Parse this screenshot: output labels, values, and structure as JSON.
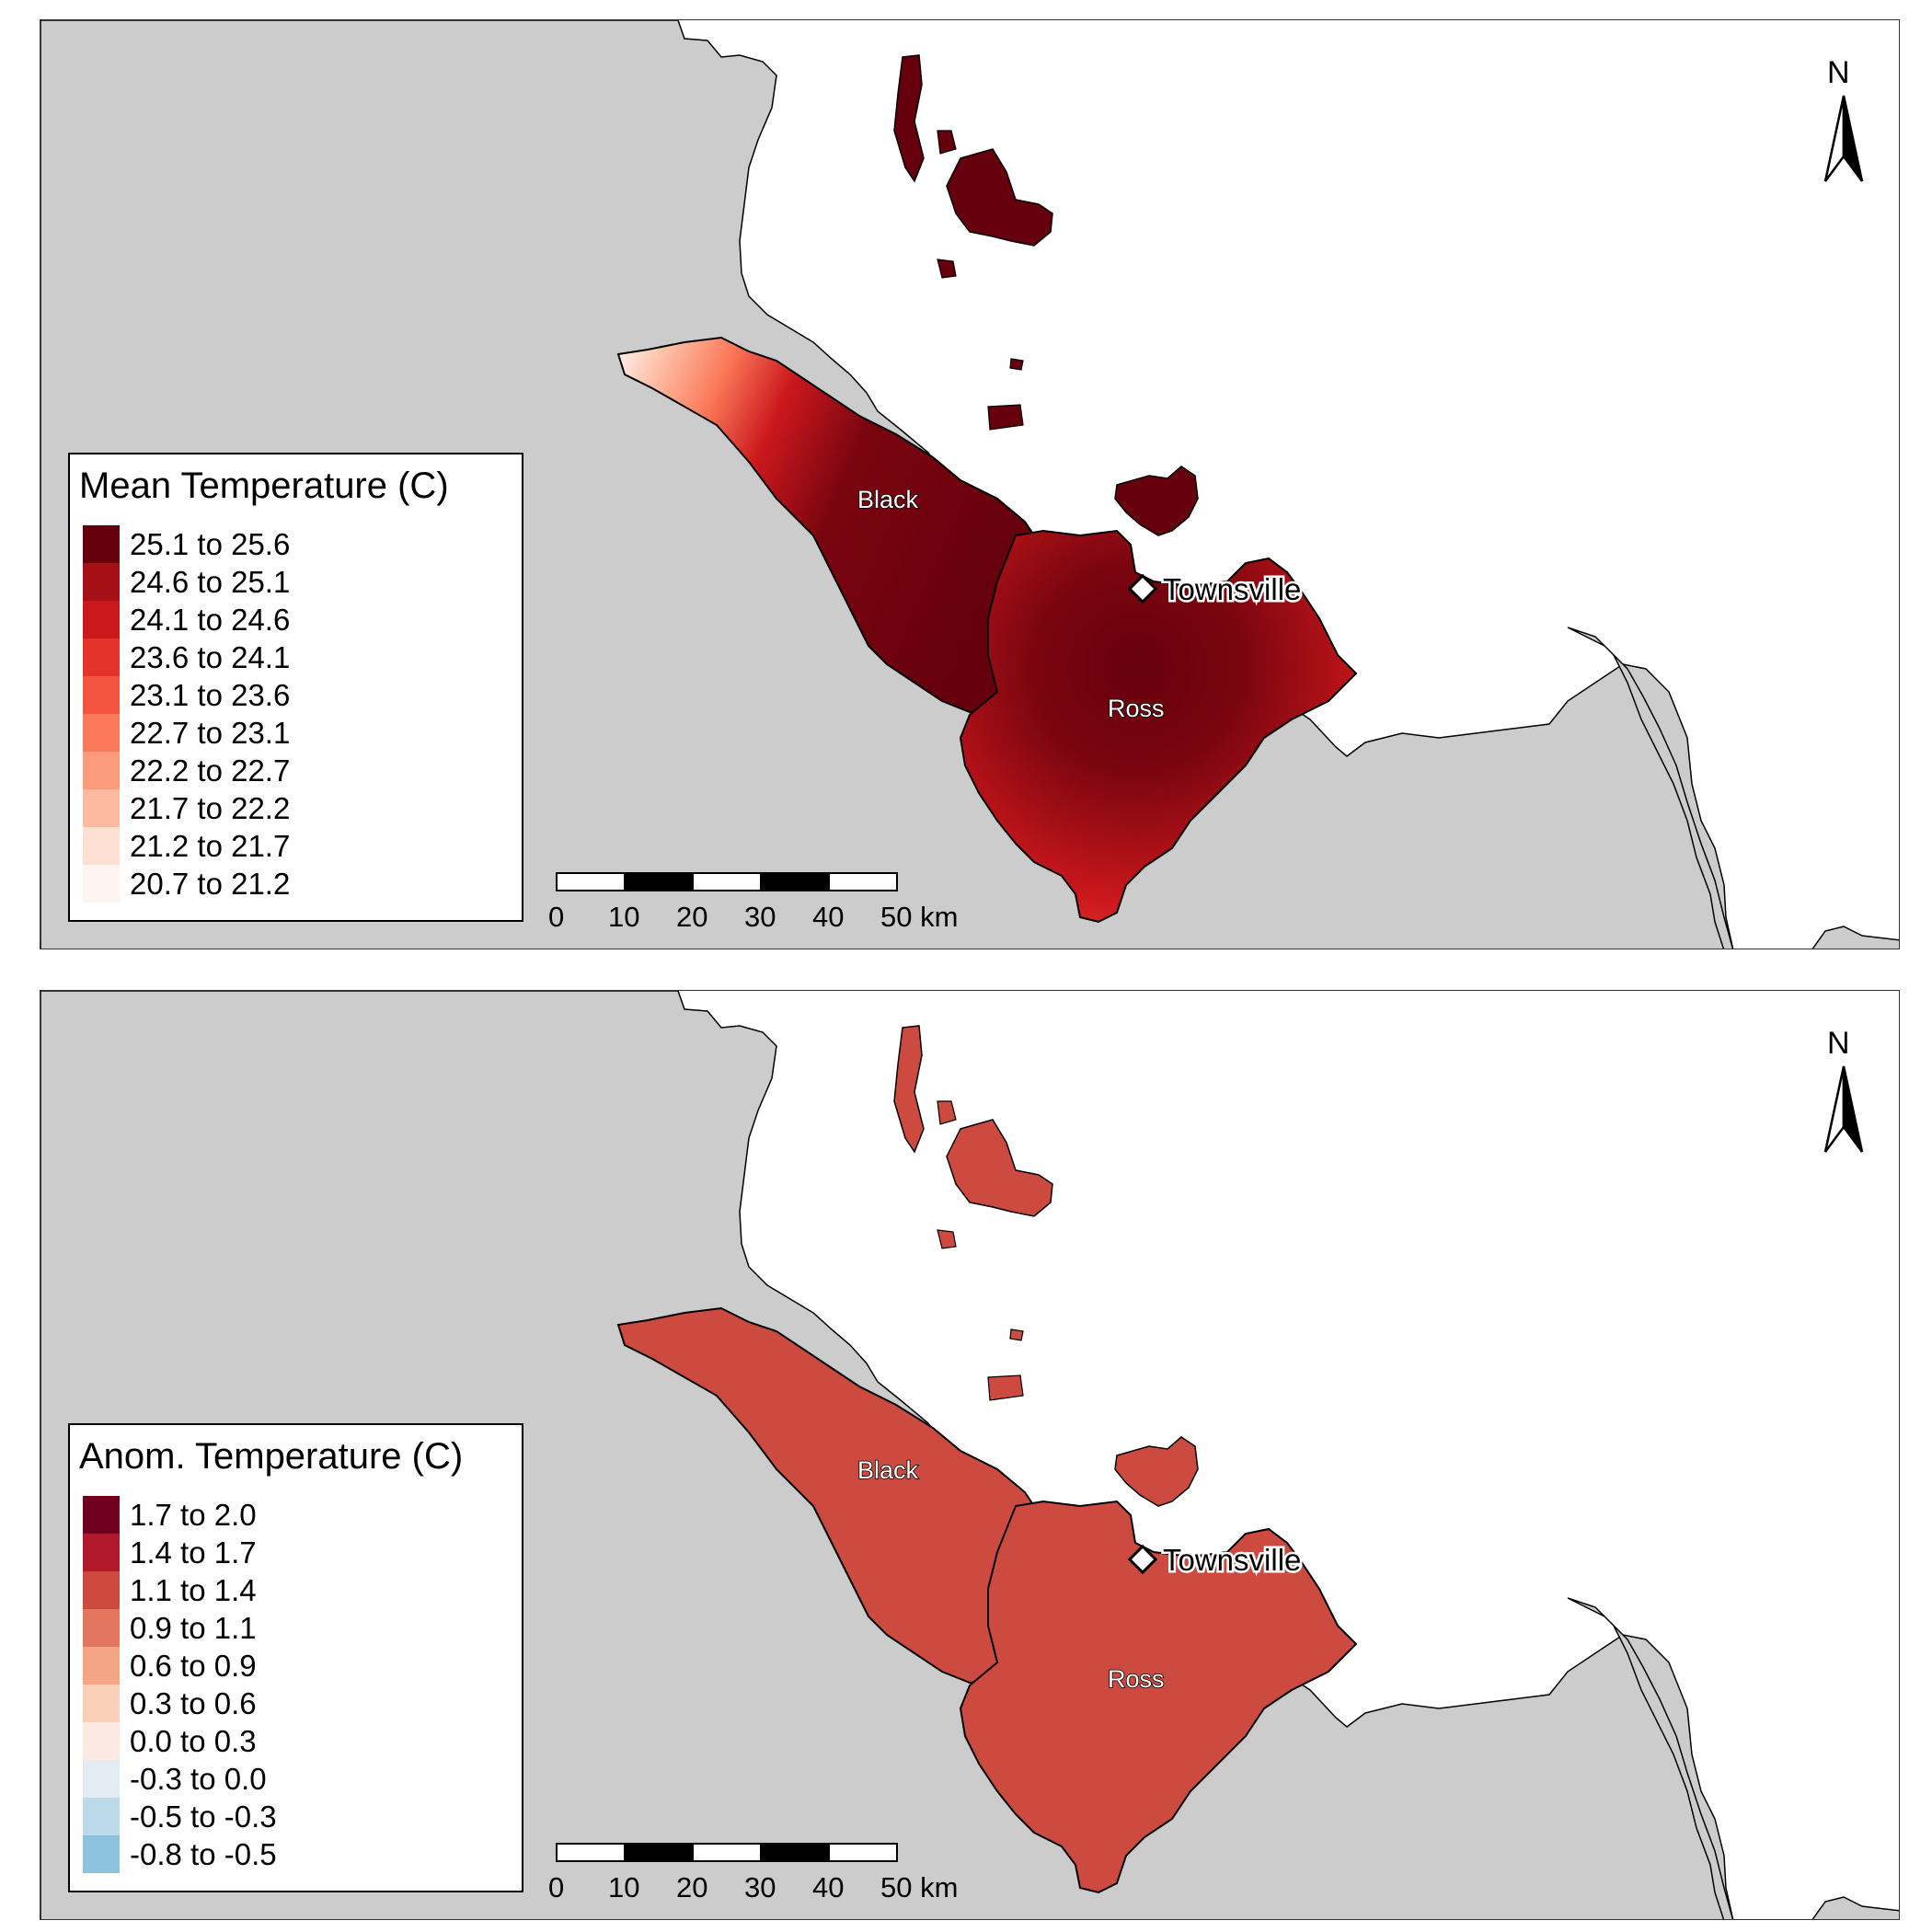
{
  "panels": [
    {
      "legend": {
        "title": "Mean Temperature (C)",
        "items": [
          {
            "label": "25.1 to 25.6",
            "color": "#67000d"
          },
          {
            "label": "24.6 to 25.1",
            "color": "#a50f15"
          },
          {
            "label": "24.1 to 24.6",
            "color": "#cb181d"
          },
          {
            "label": "23.6 to 24.1",
            "color": "#e5322b"
          },
          {
            "label": "23.1 to 23.6",
            "color": "#f4543f"
          },
          {
            "label": "22.7 to 23.1",
            "color": "#fb7858"
          },
          {
            "label": "22.2 to 22.7",
            "color": "#fc9a7c"
          },
          {
            "label": "21.7 to 22.2",
            "color": "#fcbba1"
          },
          {
            "label": "21.2 to 21.7",
            "color": "#fee0d2"
          },
          {
            "label": "20.7 to 21.2",
            "color": "#fff5f0"
          }
        ]
      },
      "labels": {
        "black": "Black",
        "ross": "Ross",
        "city": "Townsville"
      },
      "north": "N",
      "scale": {
        "ticks": [
          "0",
          "10",
          "20",
          "30",
          "40",
          "50 km"
        ]
      }
    },
    {
      "legend": {
        "title": "Anom. Temperature (C)",
        "items": [
          {
            "label": "1.7 to 2.0",
            "color": "#6f0020"
          },
          {
            "label": "1.4 to 1.7",
            "color": "#b2182b"
          },
          {
            "label": "1.1 to 1.4",
            "color": "#cd4a41"
          },
          {
            "label": "0.9 to 1.1",
            "color": "#e3765f"
          },
          {
            "label": "0.6 to 0.9",
            "color": "#f3a584"
          },
          {
            "label": "0.3 to 0.6",
            "color": "#fbd0b9"
          },
          {
            "label": "0.0 to 0.3",
            "color": "#fbe9e2"
          },
          {
            "label": "-0.3 to 0.0",
            "color": "#e4ecf3"
          },
          {
            "label": "-0.5 to -0.3",
            "color": "#bcdaea"
          },
          {
            "label": "-0.8 to -0.5",
            "color": "#8ec3de"
          }
        ]
      },
      "labels": {
        "black": "Black",
        "ross": "Ross",
        "city": "Townsville"
      },
      "north": "N",
      "scale": {
        "ticks": [
          "0",
          "10",
          "20",
          "30",
          "40",
          "50 km"
        ]
      }
    }
  ],
  "colors": {
    "land": "#cccccc",
    "sea": "#ffffff",
    "anomaly_fill": "#cd4a41"
  }
}
